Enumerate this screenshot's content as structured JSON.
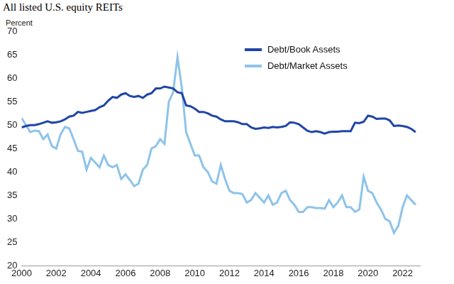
{
  "chart_data": {
    "type": "line",
    "title": "All listed U.S. equity REITs",
    "y_label": "Percent",
    "x": [
      2000,
      2000.25,
      2000.5,
      2000.75,
      2001,
      2001.25,
      2001.5,
      2001.75,
      2002,
      2002.25,
      2002.5,
      2002.75,
      2003,
      2003.25,
      2003.5,
      2003.75,
      2004,
      2004.25,
      2004.5,
      2004.75,
      2005,
      2005.25,
      2005.5,
      2005.75,
      2006,
      2006.25,
      2006.5,
      2006.75,
      2007,
      2007.25,
      2007.5,
      2007.75,
      2008,
      2008.25,
      2008.5,
      2008.75,
      2009,
      2009.25,
      2009.5,
      2009.75,
      2010,
      2010.25,
      2010.5,
      2010.75,
      2011,
      2011.25,
      2011.5,
      2011.75,
      2012,
      2012.25,
      2012.5,
      2012.75,
      2013,
      2013.25,
      2013.5,
      2013.75,
      2014,
      2014.25,
      2014.5,
      2014.75,
      2015,
      2015.25,
      2015.5,
      2015.75,
      2016,
      2016.25,
      2016.5,
      2016.75,
      2017,
      2017.25,
      2017.5,
      2017.75,
      2018,
      2018.25,
      2018.5,
      2018.75,
      2019,
      2019.25,
      2019.5,
      2019.75,
      2020,
      2020.25,
      2020.5,
      2020.75,
      2021,
      2021.25,
      2021.5,
      2021.75,
      2022,
      2022.25,
      2022.5,
      2022.75
    ],
    "series": [
      {
        "name": "Debt/Book Assets",
        "color": "#1f45a6",
        "values": [
          49.5,
          49.8,
          50,
          50,
          50.2,
          50.5,
          50.8,
          50.5,
          50.6,
          50.8,
          51.2,
          51.8,
          52,
          52.8,
          52.6,
          52.8,
          53,
          53.2,
          53.8,
          54.2,
          55.2,
          56,
          55.8,
          56.5,
          56.8,
          56.2,
          56,
          56.2,
          55.8,
          56.5,
          56.8,
          57.8,
          57.8,
          58.2,
          58,
          57.8,
          57,
          56.8,
          54.2,
          54,
          53.5,
          52.8,
          52.8,
          52.5,
          52,
          51.8,
          51.2,
          50.8,
          50.8,
          50.8,
          50.6,
          50.2,
          50.2,
          49.5,
          49.2,
          49.3,
          49.5,
          49.4,
          49.6,
          49.5,
          49.6,
          49.8,
          50.6,
          50.5,
          50.2,
          49.5,
          48.8,
          48.5,
          48.7,
          48.5,
          48.2,
          48.5,
          48.6,
          48.6,
          48.7,
          48.7,
          48.7,
          50.5,
          50.4,
          50.7,
          52,
          51.8,
          51.3,
          51.4,
          51.4,
          51,
          49.8,
          49.9,
          49.8,
          49.6,
          49.2,
          48.5
        ]
      },
      {
        "name": "Debt/Market Assets",
        "color": "#8ec3ea",
        "values": [
          51.5,
          50,
          48.5,
          48.8,
          48.7,
          47,
          48,
          45.5,
          45,
          48,
          49.6,
          49.3,
          47,
          44.5,
          44.3,
          40.5,
          43,
          42,
          41,
          43.5,
          41.5,
          41,
          41.5,
          38.5,
          39.5,
          38.3,
          37,
          37.5,
          40.5,
          41.5,
          45,
          45.5,
          47,
          46,
          55,
          57,
          64.5,
          58,
          48.5,
          46,
          43.5,
          43.5,
          41,
          40,
          38,
          37.5,
          41.5,
          38.5,
          36,
          35.5,
          35.5,
          35.3,
          33.5,
          34,
          35.5,
          34.5,
          33.5,
          35,
          33,
          33.5,
          35.5,
          36,
          34,
          33,
          31.5,
          31.5,
          32.5,
          32.5,
          32.3,
          32.3,
          32.2,
          34,
          32.5,
          33.5,
          35,
          32.5,
          32.5,
          31.5,
          32,
          39,
          36,
          35.5,
          33.5,
          32,
          30,
          29.5,
          27,
          28.5,
          32.5,
          35,
          34,
          33
        ]
      }
    ],
    "xlim": [
      2000,
      2023
    ],
    "xticks": [
      2000,
      2002,
      2004,
      2006,
      2008,
      2010,
      2012,
      2014,
      2016,
      2018,
      2020,
      2022
    ],
    "ylim": [
      20,
      70
    ],
    "yticks": [
      20,
      25,
      30,
      35,
      40,
      45,
      50,
      55,
      60,
      65,
      70
    ],
    "grid": false,
    "legend": "top"
  }
}
